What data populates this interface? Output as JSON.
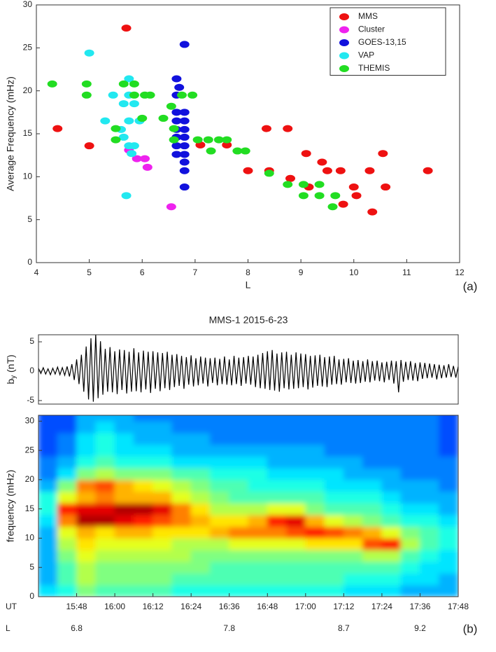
{
  "chart_data": [
    {
      "type": "scatter",
      "xlabel": "L",
      "ylabel": "Average Frequency (mHz)",
      "xlim": [
        4,
        12
      ],
      "ylim": [
        0,
        30
      ],
      "xticks": [
        4,
        5,
        6,
        7,
        8,
        9,
        10,
        11,
        12
      ],
      "yticks": [
        0,
        5,
        10,
        15,
        20,
        25,
        30
      ],
      "legend": "upper right",
      "series": [
        {
          "name": "MMS",
          "color": "#ee1111",
          "x": [
            4.4,
            5.0,
            5.7,
            7.1,
            7.6,
            8.0,
            8.35,
            8.4,
            8.75,
            8.8,
            9.1,
            9.15,
            9.4,
            9.5,
            9.75,
            9.8,
            10.0,
            10.05,
            10.3,
            10.35,
            10.55,
            10.6,
            11.4
          ],
          "values": [
            15.6,
            13.6,
            27.3,
            13.7,
            13.7,
            10.7,
            15.6,
            10.7,
            15.6,
            9.8,
            12.7,
            8.8,
            11.7,
            10.7,
            10.7,
            6.8,
            8.8,
            7.8,
            10.7,
            5.9,
            12.7,
            8.8,
            10.7
          ]
        },
        {
          "name": "Cluster",
          "color": "#ee22ee",
          "x": [
            5.75,
            5.9,
            6.05,
            6.1,
            6.55
          ],
          "values": [
            13.1,
            12.1,
            12.1,
            11.1,
            6.5
          ]
        },
        {
          "name": "GOES-13,15",
          "color": "#1111dd",
          "x": [
            6.8,
            6.65,
            6.7,
            6.65,
            6.65,
            6.65,
            6.65,
            6.65,
            6.65,
            6.65,
            6.8,
            6.8,
            6.8,
            6.8,
            6.8,
            6.8,
            6.8,
            6.8,
            6.8
          ],
          "values": [
            25.4,
            21.4,
            20.4,
            19.5,
            17.5,
            16.5,
            15.5,
            14.6,
            13.6,
            12.6,
            17.5,
            16.5,
            15.5,
            14.6,
            13.6,
            12.6,
            11.7,
            10.7,
            8.8
          ]
        },
        {
          "name": "VAP",
          "color": "#22e8f0",
          "x": [
            5.0,
            5.75,
            5.45,
            5.65,
            5.85,
            5.75,
            5.3,
            5.75,
            5.95,
            5.6,
            5.65,
            5.75,
            5.85,
            5.8,
            5.7
          ],
          "values": [
            24.4,
            21.4,
            19.5,
            18.5,
            18.5,
            19.5,
            16.5,
            16.5,
            16.5,
            15.5,
            14.6,
            13.6,
            13.6,
            12.7,
            7.8
          ]
        },
        {
          "name": "THEMIS",
          "color": "#22dd22",
          "x": [
            4.3,
            4.95,
            4.95,
            5.65,
            5.85,
            5.85,
            6.05,
            6.15,
            5.5,
            5.5,
            6.0,
            6.4,
            6.55,
            6.6,
            6.6,
            6.75,
            6.95,
            7.05,
            7.25,
            7.3,
            7.45,
            7.6,
            7.8,
            7.95,
            8.4,
            8.75,
            9.05,
            9.05,
            9.35,
            9.35,
            9.6,
            9.65
          ],
          "values": [
            20.8,
            20.8,
            19.5,
            20.8,
            20.8,
            19.5,
            19.5,
            19.5,
            15.6,
            14.3,
            16.8,
            16.8,
            18.2,
            15.6,
            14.3,
            19.5,
            19.5,
            14.3,
            14.3,
            13.0,
            14.3,
            14.3,
            13.0,
            13.0,
            10.4,
            9.1,
            9.1,
            7.8,
            9.1,
            7.8,
            6.5,
            7.8
          ]
        }
      ]
    },
    {
      "type": "line",
      "title": "MMS-1  2015-6-23",
      "ylabel": {
        "base": "b",
        "sub": "y",
        "unit": " (nT)"
      },
      "color": "#000000",
      "xlim": [
        936,
        1068
      ],
      "ylim": [
        -5.6,
        6.2
      ],
      "yticks": [
        -5,
        0,
        5
      ],
      "x": [
        936,
        936.75,
        937.5,
        938.25,
        939,
        939.75,
        940.5,
        941.25,
        942,
        942.75,
        943.5,
        944.25,
        945,
        945.75,
        946.5,
        947.25,
        948,
        948.75,
        949.5,
        950.25,
        951,
        951.75,
        952.5,
        953.25,
        954,
        954.75,
        955.5,
        956.25,
        957,
        957.75,
        958.5,
        959.25,
        960,
        960.75,
        961.5,
        962.25,
        963,
        963.75,
        964.5,
        965.25,
        966,
        966.75,
        967.5,
        968.25,
        969,
        969.75,
        970.5,
        971.25,
        972,
        972.75,
        973.5,
        974.25,
        975,
        975.75,
        976.5,
        977.25,
        978,
        978.75,
        979.5,
        980.25,
        981,
        981.75,
        982.5,
        983.25,
        984,
        984.75,
        985.5,
        986.25,
        987,
        987.75,
        988.5,
        989.25,
        990,
        990.75,
        991.5,
        992.25,
        993,
        993.75,
        994.5,
        995.25,
        996,
        996.75,
        997.5,
        998.25,
        999,
        999.75,
        1000.5,
        1001.25,
        1002,
        1002.75,
        1003.5,
        1004.25,
        1005,
        1005.75,
        1006.5,
        1007.25,
        1008,
        1008.75,
        1009.5,
        1010.25,
        1011,
        1011.75,
        1012.5,
        1013.25,
        1014,
        1014.75,
        1015.5,
        1016.25,
        1017,
        1017.75,
        1018.5,
        1019.25,
        1020,
        1020.75,
        1021.5,
        1022.25,
        1023,
        1023.75,
        1024.5,
        1025.25,
        1026,
        1026.75,
        1027.5,
        1028.25,
        1029,
        1029.75,
        1030.5,
        1031.25,
        1032,
        1032.75,
        1033.5,
        1034.25,
        1035,
        1035.75,
        1036.5,
        1037.25,
        1038,
        1038.75,
        1039.5,
        1040.25,
        1041,
        1041.75,
        1042.5,
        1043.25,
        1044,
        1044.75,
        1045.5,
        1046.25,
        1047,
        1047.75,
        1048.5,
        1049.25,
        1050,
        1050.75,
        1051.5,
        1052.25,
        1053,
        1053.75,
        1054.5,
        1055.25,
        1056,
        1056.75,
        1057.5,
        1058.25,
        1059,
        1059.75,
        1060.5,
        1061.25,
        1062,
        1062.75,
        1063.5,
        1064.25,
        1065,
        1065.75,
        1066.5,
        1067.25,
        1068
      ],
      "values": [
        0.5,
        -0.4,
        0.6,
        -0.5,
        0.4,
        -0.6,
        0.5,
        -0.5,
        0.7,
        -0.6,
        0.6,
        -0.7,
        0.8,
        -0.9,
        1.2,
        -1.5,
        2.0,
        -2.2,
        2.8,
        -3.5,
        4.2,
        -4.8,
        5.6,
        -5.2,
        6.3,
        -4.6,
        5.1,
        -4.0,
        3.8,
        -3.5,
        4.1,
        -3.6,
        3.4,
        -3.9,
        3.7,
        -3.2,
        3.6,
        -3.8,
        3.3,
        -3.5,
        3.9,
        -3.4,
        3.2,
        -3.6,
        3.5,
        -3.1,
        3.3,
        -3.7,
        3.4,
        -3.0,
        3.2,
        -3.4,
        3.1,
        -2.9,
        3.3,
        -3.2,
        2.8,
        -2.7,
        2.9,
        -2.5,
        2.6,
        -3.0,
        2.4,
        -2.3,
        2.7,
        -2.6,
        2.2,
        -2.4,
        2.5,
        -2.1,
        2.3,
        -2.6,
        2.2,
        -2.0,
        2.3,
        -2.4,
        2.1,
        -2.2,
        2.5,
        -2.3,
        2.0,
        -2.4,
        2.6,
        -2.2,
        2.3,
        -2.5,
        2.4,
        -2.1,
        2.6,
        -2.3,
        2.5,
        -2.7,
        2.8,
        -2.9,
        3.1,
        -3.0,
        3.4,
        -3.2,
        3.6,
        -3.3,
        3.0,
        -3.5,
        3.2,
        -2.9,
        3.3,
        -3.1,
        2.8,
        -3.0,
        3.2,
        -2.9,
        3.0,
        -2.7,
        2.9,
        -3.1,
        2.6,
        -2.8,
        2.7,
        -2.5,
        2.8,
        -2.6,
        2.4,
        -2.7,
        2.5,
        -2.3,
        2.6,
        -2.2,
        2.0,
        -2.3,
        2.1,
        -1.9,
        2.2,
        -2.0,
        1.8,
        -2.1,
        1.9,
        -2.0,
        1.7,
        -1.8,
        2.0,
        -1.9,
        1.7,
        -1.6,
        1.8,
        -1.7,
        1.5,
        -1.9,
        1.6,
        -1.5,
        1.8,
        -2.1,
        1.7,
        -3.6,
        1.9,
        -1.8,
        1.6,
        -1.5,
        1.7,
        -1.6,
        1.4,
        -1.7,
        1.5,
        -1.3,
        1.4,
        -1.2,
        1.3,
        -1.1,
        1.2,
        -1.4,
        1.1,
        -1.2,
        1.0,
        -1.1,
        1.2,
        -1.0,
        0.9,
        -1.1,
        0.8
      ]
    },
    {
      "type": "heatmap",
      "xlabel": "UT",
      "ylabel": "frequency (mHz)",
      "row_label": "L",
      "xlim": [
        936,
        1068
      ],
      "ylim": [
        0,
        31
      ],
      "zlim": [
        0,
        1
      ],
      "yticks": [
        0,
        5,
        10,
        15,
        20,
        25,
        30
      ],
      "xticks": [
        {
          "value": 948,
          "label": "15:48"
        },
        {
          "value": 960,
          "label": "16:00"
        },
        {
          "value": 972,
          "label": "16:12"
        },
        {
          "value": 984,
          "label": "16:24"
        },
        {
          "value": 996,
          "label": "16:36"
        },
        {
          "value": 1008,
          "label": "16:48"
        },
        {
          "value": 1020,
          "label": "17:00"
        },
        {
          "value": 1032,
          "label": "17:12"
        },
        {
          "value": 1044,
          "label": "17:24"
        },
        {
          "value": 1056,
          "label": "17:36"
        },
        {
          "value": 1068,
          "label": "17:48"
        }
      ],
      "row_ticks": [
        {
          "value": 948,
          "label": "6.8"
        },
        {
          "value": 996,
          "label": "7.8"
        },
        {
          "value": 1032,
          "label": "8.7"
        },
        {
          "value": 1056,
          "label": "9.2"
        }
      ],
      "x_bins": [
        936,
        942,
        948,
        954,
        960,
        966,
        972,
        978,
        984,
        990,
        996,
        1002,
        1008,
        1014,
        1020,
        1026,
        1032,
        1038,
        1044,
        1050,
        1056,
        1062,
        1068
      ],
      "y_bins": [
        0,
        2,
        4,
        6,
        8,
        10,
        12,
        14,
        16,
        18,
        20,
        22,
        24,
        26,
        28,
        30,
        32
      ],
      "values": [
        [
          0.35,
          0.3,
          0.3,
          0.3,
          0.3,
          0.3,
          0.35,
          0.4,
          0.4,
          0.3,
          0.25,
          0.25,
          0.2,
          0.2,
          0.2,
          0.2
        ],
        [
          0.4,
          0.45,
          0.45,
          0.5,
          0.55,
          0.6,
          0.75,
          0.85,
          0.6,
          0.5,
          0.35,
          0.3,
          0.25,
          0.25,
          0.2,
          0.2
        ],
        [
          0.5,
          0.55,
          0.55,
          0.6,
          0.65,
          0.7,
          0.95,
          0.9,
          0.7,
          0.75,
          0.5,
          0.4,
          0.35,
          0.35,
          0.3,
          0.3
        ],
        [
          0.45,
          0.5,
          0.5,
          0.55,
          0.6,
          0.65,
          0.95,
          0.9,
          0.75,
          0.8,
          0.55,
          0.45,
          0.4,
          0.4,
          0.35,
          0.3
        ],
        [
          0.45,
          0.5,
          0.5,
          0.55,
          0.6,
          0.7,
          0.9,
          0.95,
          0.7,
          0.7,
          0.5,
          0.4,
          0.35,
          0.35,
          0.3,
          0.3
        ],
        [
          0.45,
          0.5,
          0.5,
          0.55,
          0.6,
          0.7,
          0.85,
          0.95,
          0.7,
          0.65,
          0.5,
          0.4,
          0.35,
          0.3,
          0.3,
          0.25
        ],
        [
          0.45,
          0.5,
          0.5,
          0.55,
          0.6,
          0.65,
          0.8,
          0.9,
          0.7,
          0.6,
          0.5,
          0.4,
          0.35,
          0.3,
          0.3,
          0.25
        ],
        [
          0.4,
          0.45,
          0.5,
          0.55,
          0.55,
          0.65,
          0.75,
          0.75,
          0.6,
          0.55,
          0.45,
          0.35,
          0.3,
          0.3,
          0.25,
          0.25
        ],
        [
          0.4,
          0.45,
          0.5,
          0.5,
          0.55,
          0.65,
          0.7,
          0.65,
          0.55,
          0.5,
          0.45,
          0.35,
          0.3,
          0.3,
          0.25,
          0.25
        ],
        [
          0.4,
          0.45,
          0.45,
          0.5,
          0.55,
          0.7,
          0.65,
          0.55,
          0.5,
          0.45,
          0.4,
          0.35,
          0.3,
          0.25,
          0.25,
          0.25
        ],
        [
          0.4,
          0.45,
          0.45,
          0.5,
          0.6,
          0.75,
          0.65,
          0.55,
          0.45,
          0.45,
          0.4,
          0.35,
          0.3,
          0.25,
          0.25,
          0.25
        ],
        [
          0.4,
          0.45,
          0.45,
          0.5,
          0.6,
          0.75,
          0.7,
          0.55,
          0.45,
          0.4,
          0.4,
          0.35,
          0.3,
          0.25,
          0.25,
          0.25
        ],
        [
          0.4,
          0.45,
          0.45,
          0.5,
          0.6,
          0.75,
          0.85,
          0.6,
          0.45,
          0.4,
          0.35,
          0.3,
          0.3,
          0.25,
          0.25,
          0.25
        ],
        [
          0.4,
          0.45,
          0.45,
          0.5,
          0.6,
          0.8,
          0.9,
          0.6,
          0.45,
          0.4,
          0.35,
          0.3,
          0.3,
          0.25,
          0.25,
          0.25
        ],
        [
          0.4,
          0.45,
          0.45,
          0.5,
          0.65,
          0.85,
          0.7,
          0.5,
          0.45,
          0.4,
          0.35,
          0.3,
          0.3,
          0.25,
          0.25,
          0.25
        ],
        [
          0.4,
          0.45,
          0.45,
          0.5,
          0.65,
          0.8,
          0.6,
          0.45,
          0.4,
          0.35,
          0.35,
          0.3,
          0.25,
          0.25,
          0.25,
          0.25
        ],
        [
          0.35,
          0.4,
          0.45,
          0.5,
          0.65,
          0.75,
          0.55,
          0.45,
          0.4,
          0.35,
          0.3,
          0.3,
          0.25,
          0.25,
          0.25,
          0.25
        ],
        [
          0.35,
          0.4,
          0.45,
          0.55,
          0.8,
          0.7,
          0.5,
          0.45,
          0.4,
          0.35,
          0.3,
          0.25,
          0.25,
          0.25,
          0.25,
          0.25
        ],
        [
          0.35,
          0.4,
          0.45,
          0.55,
          0.85,
          0.6,
          0.45,
          0.4,
          0.35,
          0.3,
          0.3,
          0.25,
          0.25,
          0.25,
          0.25,
          0.25
        ],
        [
          0.3,
          0.35,
          0.4,
          0.45,
          0.55,
          0.5,
          0.4,
          0.35,
          0.3,
          0.3,
          0.25,
          0.25,
          0.25,
          0.25,
          0.25,
          0.25
        ],
        [
          0.3,
          0.35,
          0.35,
          0.4,
          0.45,
          0.45,
          0.4,
          0.35,
          0.3,
          0.3,
          0.25,
          0.25,
          0.25,
          0.25,
          0.25,
          0.25
        ],
        [
          0.3,
          0.3,
          0.35,
          0.35,
          0.4,
          0.4,
          0.35,
          0.3,
          0.3,
          0.25,
          0.25,
          0.25,
          0.2,
          0.2,
          0.2,
          0.2
        ]
      ]
    }
  ],
  "panel_labels": [
    "(a)",
    "(b)"
  ]
}
